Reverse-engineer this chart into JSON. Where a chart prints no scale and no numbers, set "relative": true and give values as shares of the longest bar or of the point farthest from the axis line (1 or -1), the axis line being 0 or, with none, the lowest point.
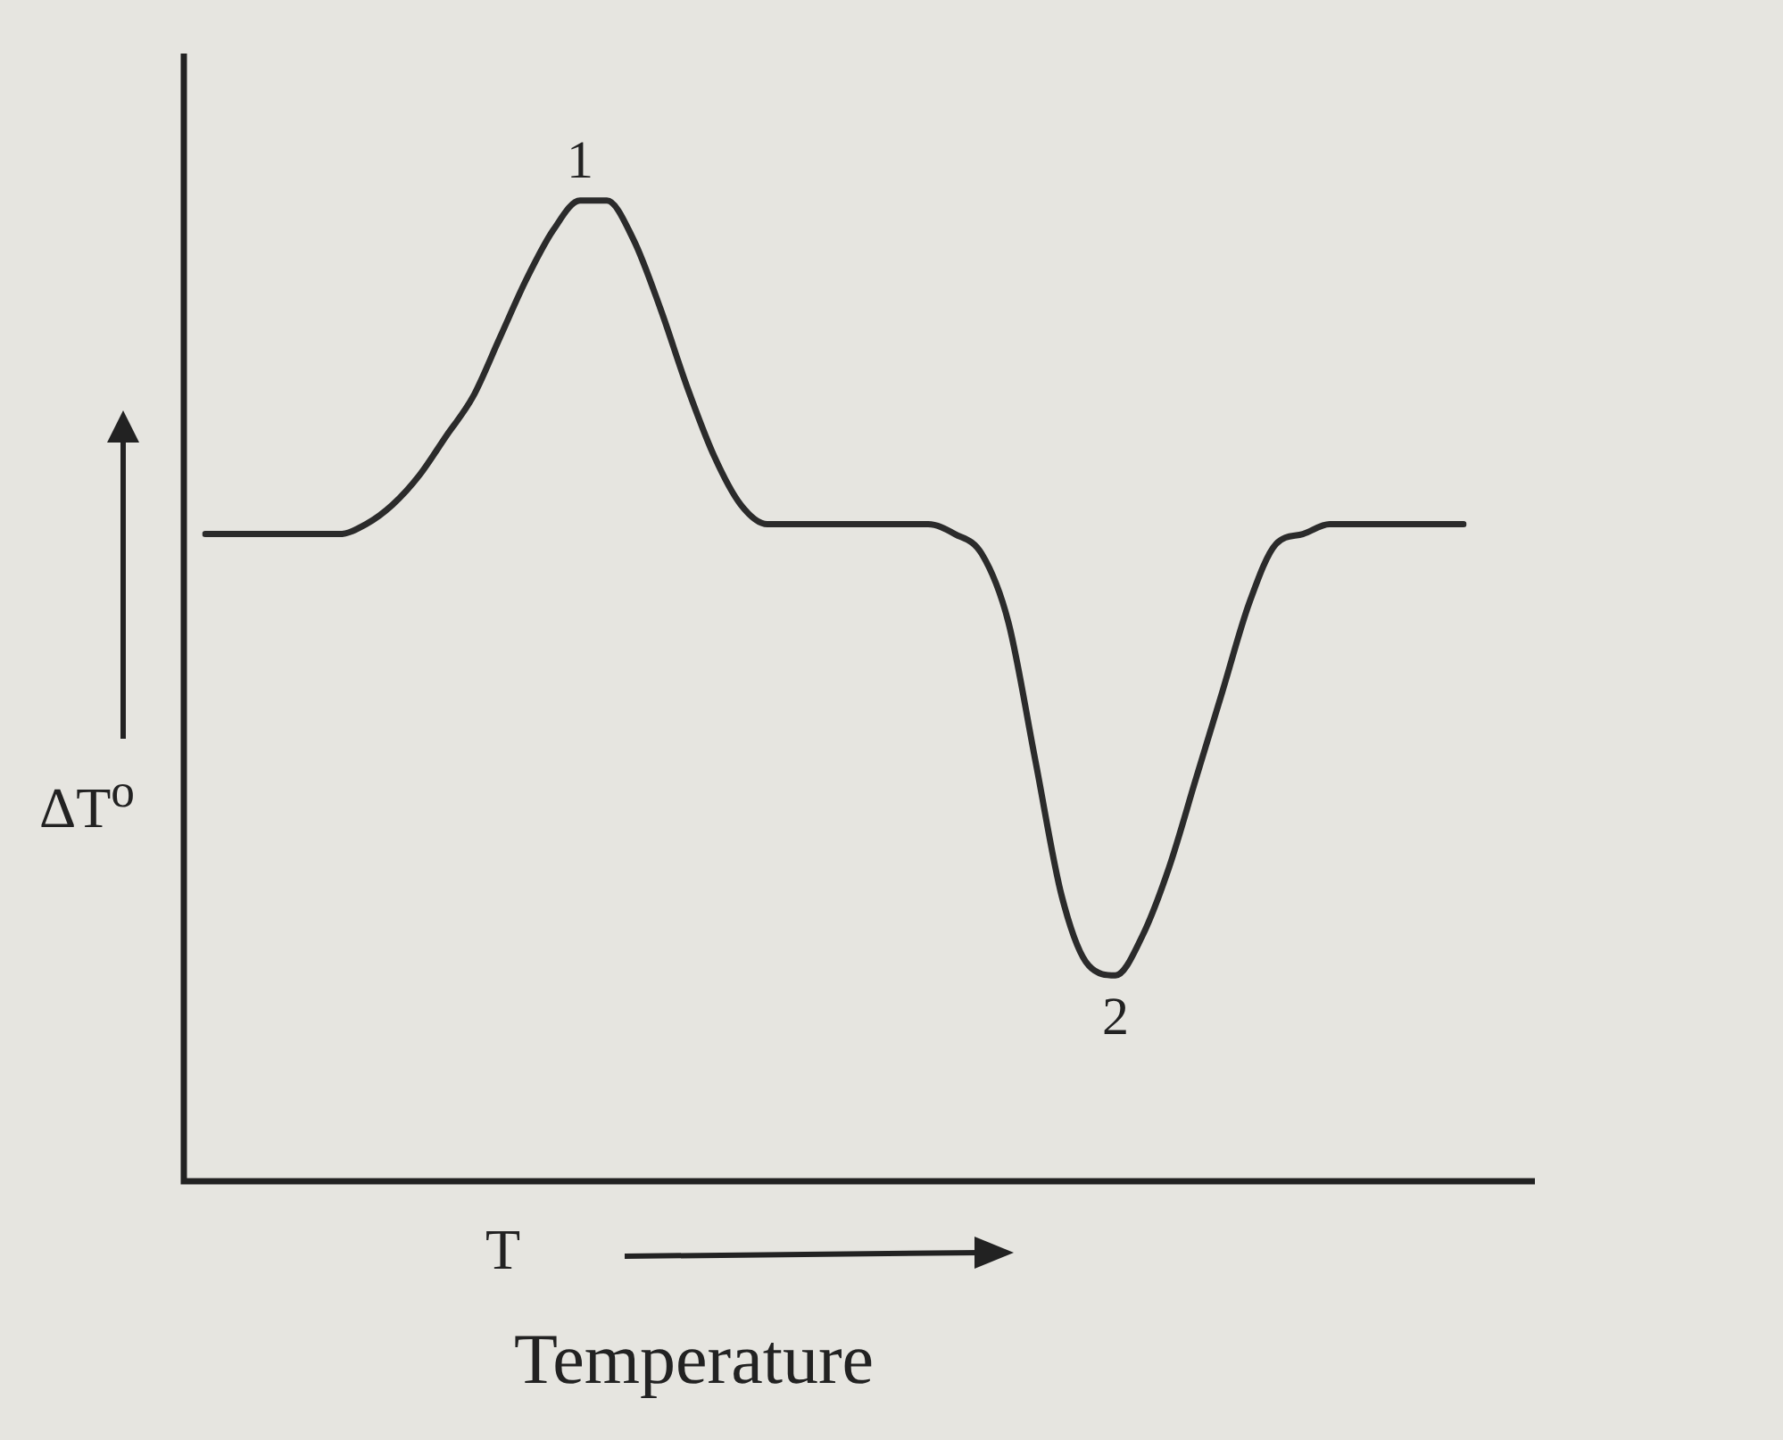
{
  "chart_data": {
    "type": "line",
    "relative": true,
    "xlabel": "Temperature",
    "ylabel": "ΔT$^{o}$",
    "legend": false,
    "marker": "none",
    "categories": [
      null,
      null,
      null,
      null,
      null,
      null,
      null,
      null,
      null,
      null,
      null,
      null,
      null,
      null,
      null,
      null,
      null,
      null,
      null,
      null,
      null,
      null,
      null,
      null,
      null,
      null,
      null,
      null,
      null,
      null,
      null,
      null,
      null,
      null,
      null,
      null,
      null,
      null,
      null,
      null,
      null,
      null,
      null,
      null,
      null,
      null,
      null,
      null
    ],
    "series": [
      {
        "color": "#2b2b2b",
        "values": [
          0.66,
          0.66,
          0.66,
          0.66,
          0.66,
          0.66,
          0.67,
          0.69,
          0.72,
          0.76,
          0.8,
          0.86,
          0.92,
          0.97,
          1,
          1,
          0.96,
          0.89,
          0.81,
          0.74,
          0.69,
          0.67,
          0.67,
          0.67,
          0.67,
          0.67,
          0.67,
          0.67,
          0.66,
          0.64,
          0.57,
          0.43,
          0.29,
          0.22,
          0.21,
          0.25,
          0.32,
          0.41,
          0.5,
          0.59,
          0.65,
          0.66,
          0.67,
          0.67,
          0.67,
          0.67,
          0.67,
          0.67
        ]
      }
    ],
    "annotations": [
      {
        "text": "1",
        "y": 1
      },
      {
        "text": "2",
        "y": 0.21
      },
      "T"
    ]
  }
}
